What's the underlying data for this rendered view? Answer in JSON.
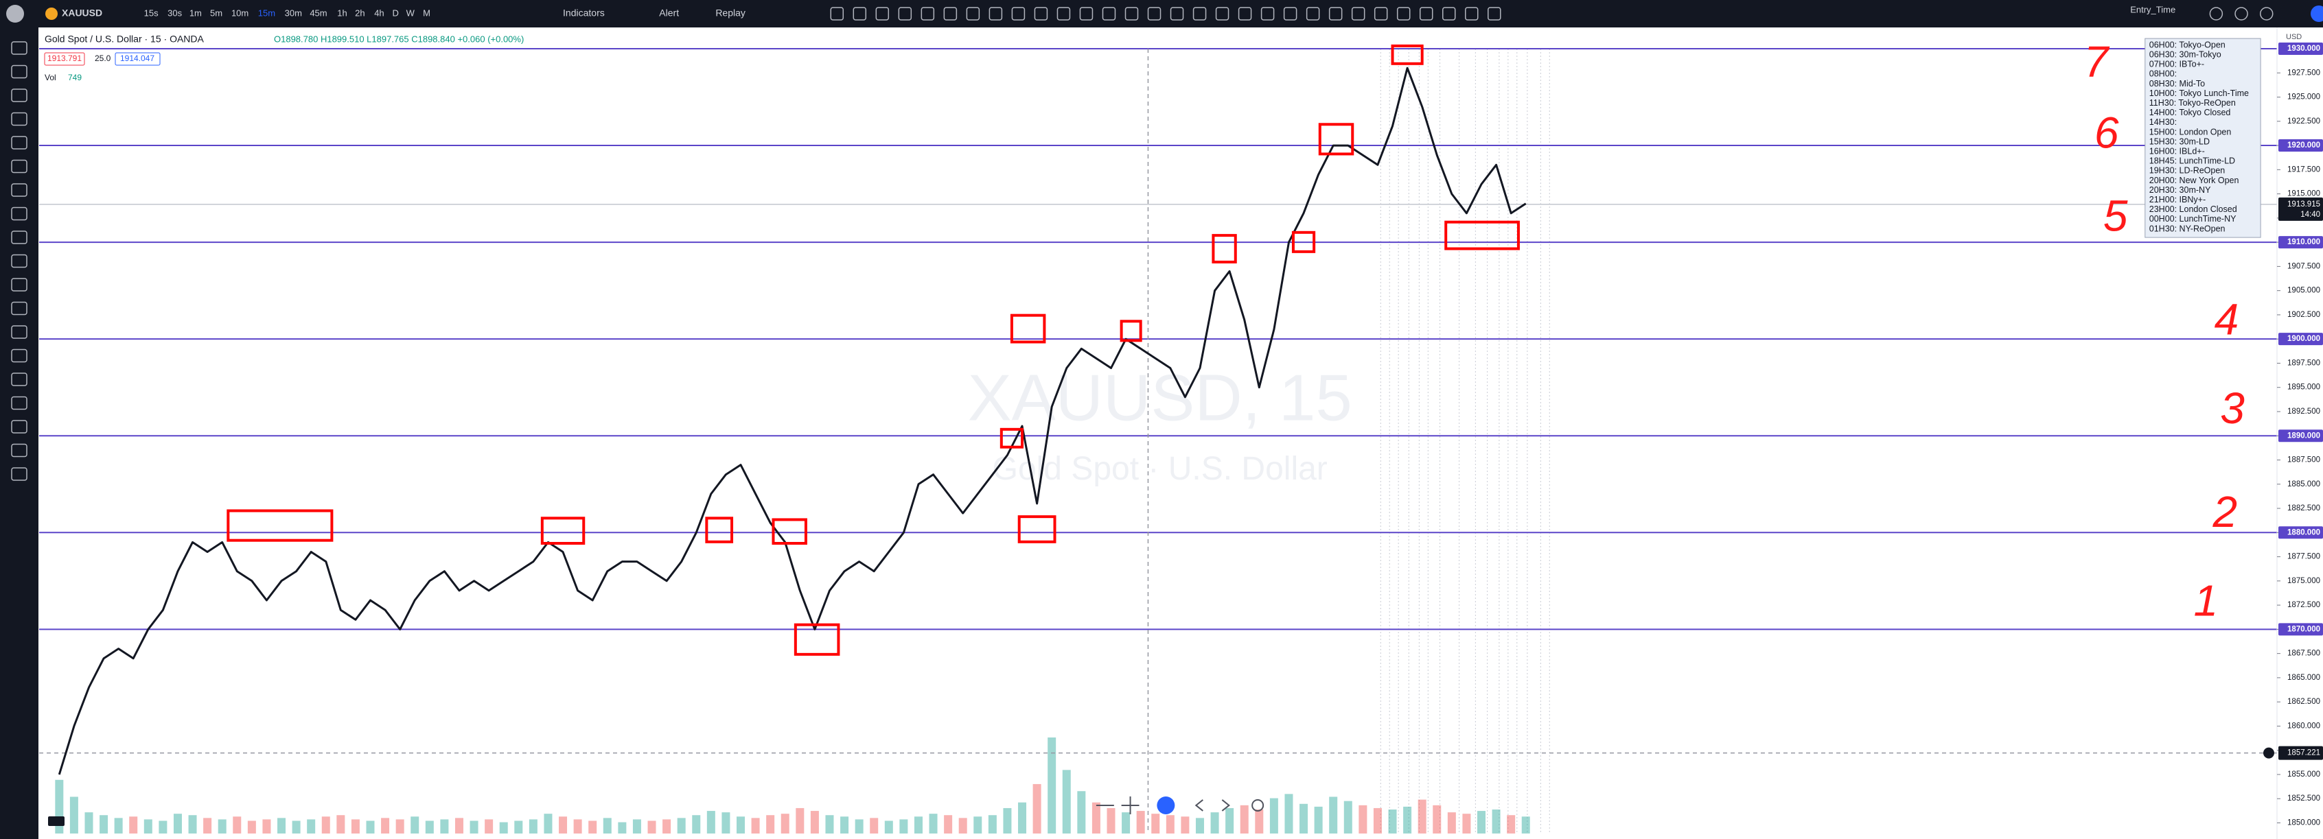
{
  "toolbar": {
    "symbol": "XAUUSD",
    "intervals": [
      "15s",
      "30s",
      "1m",
      "5m",
      "10m",
      "15m",
      "30m",
      "45m",
      "1h",
      "2h",
      "4h",
      "D",
      "W",
      "M"
    ],
    "indicators": "Indicators",
    "alert": "Alert",
    "replay": "Replay",
    "layout": "Entry_Time",
    "currency": "USD"
  },
  "legend": {
    "title": "Gold Spot / U.S. Dollar · 15 · OANDA",
    "ohlc": "O1898.780 H1899.510 L1897.765 C1898.840 +0.060 (+0.00%)",
    "bid": "1913.791",
    "spread": "25.0",
    "ask": "1914.047",
    "volume_label": "Vol",
    "volume_value": "749"
  },
  "watermark": {
    "symbol": "XAUUSD, 15",
    "description": "Gold Spot · U.S. Dollar"
  },
  "chart_data": {
    "type": "line",
    "color": "#131722",
    "up_color": "#26a69a",
    "down_color": "#ef5350",
    "level_color": "#5b45c9",
    "values": [
      1855,
      1860,
      1864,
      1867,
      1868,
      1867,
      1870,
      1872,
      1876,
      1879,
      1878,
      1879,
      1876,
      1875,
      1873,
      1875,
      1876,
      1878,
      1877,
      1872,
      1871,
      1873,
      1872,
      1870,
      1873,
      1875,
      1876,
      1874,
      1875,
      1874,
      1875,
      1876,
      1877,
      1879,
      1878,
      1874,
      1873,
      1876,
      1877,
      1877,
      1876,
      1875,
      1877,
      1880,
      1884,
      1886,
      1887,
      1884,
      1881,
      1879,
      1874,
      1870,
      1874,
      1876,
      1877,
      1876,
      1878,
      1880,
      1885,
      1886,
      1884,
      1882,
      1884,
      1886,
      1888,
      1891,
      1883,
      1893,
      1897,
      1899,
      1898,
      1897,
      1900,
      1899,
      1898,
      1897,
      1894,
      1897,
      1905,
      1907,
      1902,
      1895,
      1901,
      1910,
      1913,
      1917,
      1920,
      1920,
      1919,
      1918,
      1922,
      1928,
      1924,
      1919,
      1915,
      1913,
      1916,
      1918,
      1913,
      1914
    ],
    "volume": [
      3800,
      2600,
      1500,
      1300,
      1100,
      1200,
      1000,
      900,
      1400,
      1300,
      1100,
      1000,
      1200,
      900,
      1000,
      1100,
      900,
      1000,
      1200,
      1300,
      1000,
      900,
      1100,
      1000,
      1200,
      900,
      1000,
      1100,
      900,
      1000,
      800,
      900,
      1000,
      1400,
      1200,
      1000,
      900,
      1100,
      800,
      1000,
      900,
      1000,
      1100,
      1300,
      1600,
      1500,
      1200,
      1100,
      1300,
      1400,
      1800,
      1600,
      1300,
      1200,
      1000,
      1100,
      900,
      1000,
      1200,
      1400,
      1300,
      1100,
      1200,
      1300,
      1800,
      2200,
      3500,
      6800,
      4500,
      3000,
      2200,
      1800,
      1500,
      1600,
      1400,
      1300,
      1200,
      1100,
      1500,
      1800,
      2000,
      1700,
      2500,
      2800,
      2100,
      1900,
      2600,
      2300,
      2000,
      1800,
      1700,
      1900,
      2400,
      2000,
      1500,
      1400,
      1600,
      1700,
      1300,
      1200
    ],
    "ylim": [
      1848.9,
      1930
    ],
    "yticks": [
      {
        "value": 1850,
        "label": "1850.000"
      },
      {
        "value": 1852.5,
        "label": "1852.500"
      },
      {
        "value": 1855,
        "label": "1855.000"
      },
      {
        "value": 1857.5,
        "label": "1857.500"
      },
      {
        "value": 1860,
        "label": "1860.000"
      },
      {
        "value": 1862.5,
        "label": "1862.500"
      },
      {
        "value": 1865,
        "label": "1865.000"
      },
      {
        "value": 1867.5,
        "label": "1867.500"
      },
      {
        "value": 1870,
        "label": "1870.000"
      },
      {
        "value": 1872.5,
        "label": "1872.500"
      },
      {
        "value": 1875,
        "label": "1875.000"
      },
      {
        "value": 1877.5,
        "label": "1877.500"
      },
      {
        "value": 1880,
        "label": "1880.000"
      },
      {
        "value": 1882.5,
        "label": "1882.500"
      },
      {
        "value": 1885,
        "label": "1885.000"
      },
      {
        "value": 1887.5,
        "label": "1887.500"
      },
      {
        "value": 1890,
        "label": "1890.000"
      },
      {
        "value": 1892.5,
        "label": "1892.500"
      },
      {
        "value": 1895,
        "label": "1895.000"
      },
      {
        "value": 1897.5,
        "label": "1897.500"
      },
      {
        "value": 1900,
        "label": "1900.000"
      },
      {
        "value": 1902.5,
        "label": "1902.500"
      },
      {
        "value": 1905,
        "label": "1905.000"
      },
      {
        "value": 1907.5,
        "label": "1907.500"
      },
      {
        "value": 1910,
        "label": "1910.000"
      },
      {
        "value": 1912.5,
        "label": "1912.500"
      },
      {
        "value": 1915,
        "label": "1915.000"
      },
      {
        "value": 1917.5,
        "label": "1917.500"
      },
      {
        "value": 1920,
        "label": "1920.000"
      },
      {
        "value": 1922.5,
        "label": "1922.500"
      },
      {
        "value": 1925,
        "label": "1925.000"
      },
      {
        "value": 1927.5,
        "label": "1927.500"
      }
    ],
    "levels": [
      {
        "value": 1870,
        "label": "1870.000"
      },
      {
        "value": 1880,
        "label": "1880.000"
      },
      {
        "value": 1890,
        "label": "1890.000"
      },
      {
        "value": 1900,
        "label": "1900.000"
      },
      {
        "value": 1910,
        "label": "1910.000"
      },
      {
        "value": 1920,
        "label": "1920.000"
      },
      {
        "value": 1930,
        "label": "1930.000"
      }
    ],
    "last_price": {
      "value": 1913.915,
      "label": "1913.915"
    },
    "countdown": "14:40",
    "crosshair": {
      "value": 1857.221,
      "label": "1857.221"
    }
  },
  "annotations": [
    "1",
    "2",
    "3",
    "4",
    "5",
    "6",
    "7"
  ],
  "sessions": [
    "06H00: Tokyo-Open",
    "06H30: 30m-Tokyo",
    "07H00: IBTo+-",
    "08H00:",
    "08H30: Mid-To",
    "10H00: Tokyo Lunch-Time",
    "11H30: Tokyo-ReOpen",
    "14H00: Tokyo Closed",
    "14H30:",
    "15H00: London Open",
    "15H30: 30m-LD",
    "16H00: IBLd+-",
    "18H45: LunchTime-LD",
    "19H30: LD-ReOpen",
    "20H00: New York Open",
    "20H30: 30m-NY",
    "21H00: IBNy+-",
    "23H00: London Closed",
    "00H00: LunchTime-NY",
    "01H30: NY-ReOpen"
  ]
}
